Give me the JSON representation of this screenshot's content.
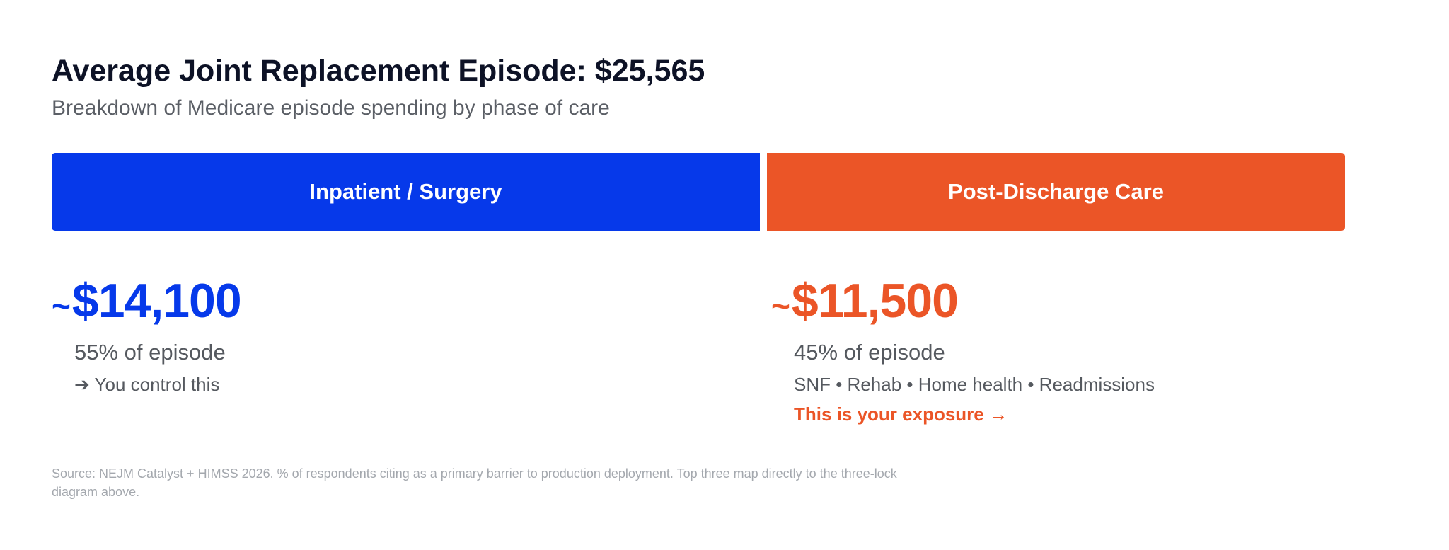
{
  "header": {
    "title": "Average Joint Replacement Episode: $25,565",
    "subtitle": "Breakdown of Medicare episode spending by phase of care"
  },
  "colors": {
    "inpatient": "#0639ea",
    "post_discharge": "#eb5527"
  },
  "chart_data": {
    "type": "bar",
    "orientation": "horizontal-stacked",
    "total": 25565,
    "categories": [
      "Inpatient / Surgery",
      "Post-Discharge Care"
    ],
    "values": [
      14100,
      11500
    ],
    "percents": [
      55,
      45
    ]
  },
  "segments": [
    {
      "label": "Inpatient / Surgery",
      "tilde": "~",
      "amount": "$14,100",
      "pct": "55% of episode",
      "note": "➔ You control this",
      "cta": ""
    },
    {
      "label": "Post-Discharge Care",
      "tilde": "~",
      "amount": "$11,500",
      "pct": "45% of episode",
      "note": "SNF • Rehab • Home health • Readmissions",
      "cta": "This is your exposure →"
    }
  ],
  "footer": {
    "source": "Source: NEJM Catalyst + HIMSS 2026. % of respondents citing as a primary barrier to production deployment. Top three map directly to the three-lock diagram above."
  }
}
